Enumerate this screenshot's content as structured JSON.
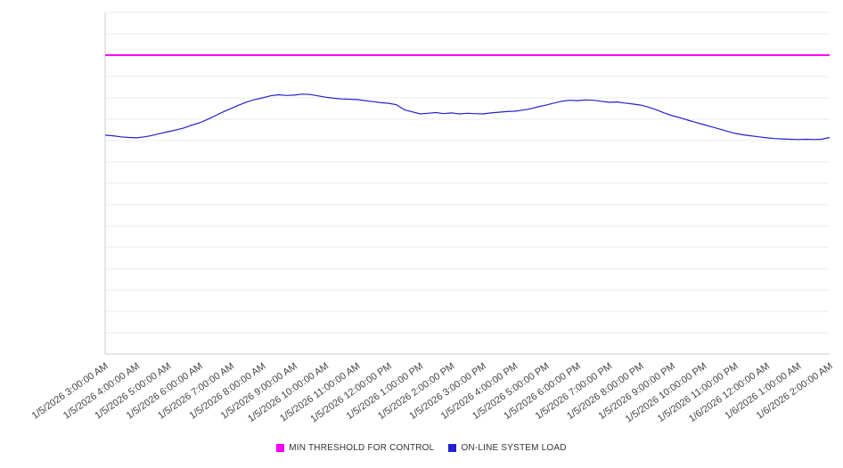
{
  "legend": {
    "items": [
      {
        "label": "MIN THRESHOLD FOR CONTROL",
        "color": "#ff00ff"
      },
      {
        "label": "ON-LINE SYSTEM LOAD",
        "color": "#2222cc"
      }
    ]
  },
  "chart_data": {
    "type": "line",
    "title": "",
    "xlabel": "",
    "ylabel": "",
    "ylim": [
      0,
      100
    ],
    "grid": true,
    "y_axis_labels_visible": false,
    "legend_position": "bottom-center",
    "x_labels": [
      "1/5/2026 3:00:00 AM",
      "1/5/2026 4:00:00 AM",
      "1/5/2026 5:00:00 AM",
      "1/5/2026 6:00:00 AM",
      "1/5/2026 7:00:00 AM",
      "1/5/2026 8:00:00 AM",
      "1/5/2026 9:00:00 AM",
      "1/5/2026 10:00:00 AM",
      "1/5/2026 11:00:00 AM",
      "1/5/2026 12:00:00 PM",
      "1/5/2026 1:00:00 PM",
      "1/5/2026 2:00:00 PM",
      "1/5/2026 3:00:00 PM",
      "1/5/2026 4:00:00 PM",
      "1/5/2026 5:00:00 PM",
      "1/5/2026 6:00:00 PM",
      "1/5/2026 7:00:00 PM",
      "1/5/2026 8:00:00 PM",
      "1/5/2026 9:00:00 PM",
      "1/5/2026 10:00:00 PM",
      "1/5/2026 11:00:00 PM",
      "1/6/2026 12:00:00 AM",
      "1/6/2026 1:00:00 AM",
      "1/6/2026 2:00:00 AM"
    ],
    "series": [
      {
        "name": "MIN THRESHOLD FOR CONTROL",
        "style": "horizontal-threshold",
        "color": "#ff00ff",
        "value": 87.5
      },
      {
        "name": "ON-LINE SYSTEM LOAD",
        "style": "line",
        "color": "#2222cc",
        "points_per_hour": 4,
        "values": [
          64.1,
          63.9,
          63.6,
          63.4,
          63.3,
          63.6,
          64.0,
          64.6,
          65.1,
          65.6,
          66.2,
          67.0,
          67.7,
          68.7,
          69.8,
          70.9,
          71.9,
          72.9,
          73.8,
          74.5,
          75.0,
          75.6,
          75.9,
          75.7,
          75.8,
          76.1,
          76.0,
          75.6,
          75.2,
          74.9,
          74.7,
          74.6,
          74.5,
          74.2,
          73.9,
          73.6,
          73.4,
          73.0,
          71.5,
          70.9,
          70.3,
          70.5,
          70.7,
          70.4,
          70.6,
          70.3,
          70.5,
          70.4,
          70.3,
          70.6,
          70.8,
          71.0,
          71.1,
          71.4,
          71.8,
          72.4,
          72.9,
          73.5,
          74.0,
          74.3,
          74.2,
          74.4,
          74.3,
          74.0,
          73.7,
          73.8,
          73.5,
          73.2,
          72.9,
          72.3,
          71.5,
          70.6,
          69.8,
          69.2,
          68.5,
          67.8,
          67.2,
          66.5,
          65.9,
          65.2,
          64.6,
          64.2,
          63.9,
          63.6,
          63.3,
          63.1,
          63.0,
          62.9,
          62.8,
          62.9,
          62.8,
          62.9,
          63.4
        ]
      }
    ]
  }
}
